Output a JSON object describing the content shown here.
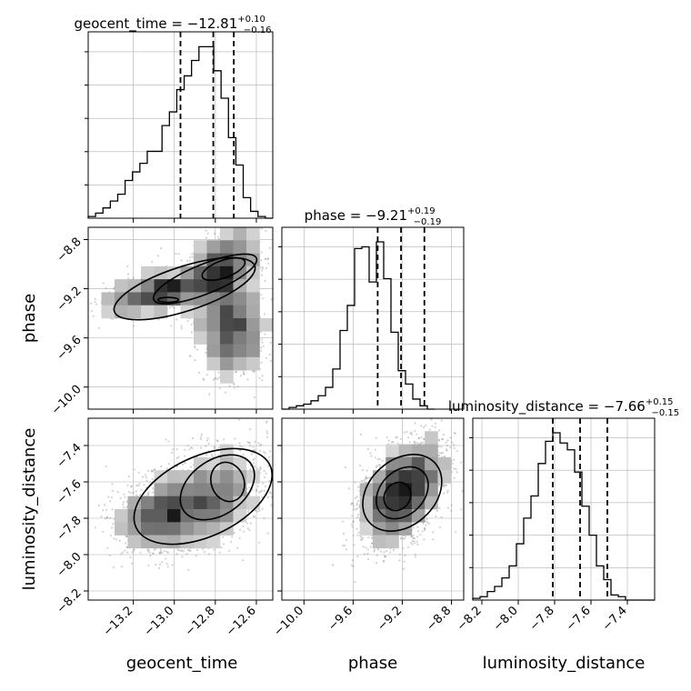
{
  "chart_data": {
    "type": "corner",
    "parameters": [
      "geocent_time",
      "phase",
      "luminosity_distance"
    ],
    "grid": true,
    "ranges": {
      "geocent_time": [
        -13.42,
        -12.52
      ],
      "phase": [
        -10.18,
        -8.7
      ],
      "luminosity_distance": [
        -8.25,
        -7.25
      ]
    },
    "ticks": {
      "geocent_time": [
        "-13.2",
        "-13.0",
        "-12.8",
        "-12.6"
      ],
      "phase": [
        "-10.0",
        "-9.6",
        "-9.2",
        "-8.8"
      ],
      "luminosity_distance": [
        "-8.2",
        "-8.0",
        "-7.8",
        "-7.6",
        "-7.4"
      ]
    },
    "tick_values": {
      "geocent_time": [
        -13.2,
        -13.0,
        -12.8,
        -12.6
      ],
      "phase": [
        -10.0,
        -9.6,
        -9.2,
        -8.8
      ],
      "luminosity_distance": [
        -8.2,
        -8.0,
        -7.8,
        -7.6,
        -7.4
      ]
    },
    "titles": [
      {
        "param": "geocent_time",
        "label": "geocent_time = −12.81",
        "plus": "+0.10",
        "minus": "−0.16"
      },
      {
        "param": "phase",
        "label": "phase = −9.21",
        "plus": "+0.19",
        "minus": "−0.19"
      },
      {
        "param": "luminosity_distance",
        "label": "luminosity_distance = −7.66",
        "plus": "+0.15",
        "minus": "−0.15"
      }
    ],
    "quantiles": {
      "geocent_time": [
        -12.97,
        -12.81,
        -12.71
      ],
      "phase": [
        -9.4,
        -9.21,
        -9.02
      ],
      "luminosity_distance": [
        -7.81,
        -7.66,
        -7.51
      ]
    },
    "histograms": {
      "geocent_time": {
        "edges_start": -13.42,
        "bin_width": 0.036,
        "counts": [
          1,
          3,
          6,
          10,
          14,
          22,
          27,
          32,
          39,
          39,
          54,
          62,
          75,
          83,
          92,
          100,
          100,
          86,
          70,
          47,
          31,
          12,
          4,
          1,
          0
        ]
      },
      "phase": {
        "edges_start": -10.18,
        "bin_width": 0.0592,
        "counts": [
          0,
          1,
          2,
          3,
          5,
          8,
          13,
          24,
          47,
          62,
          96,
          97,
          76,
          100,
          78,
          46,
          23,
          15,
          6,
          2,
          0
        ]
      },
      "luminosity_distance": {
        "edges_start": -8.25,
        "bin_width": 0.04,
        "counts": [
          1,
          2,
          5,
          8,
          13,
          20,
          33,
          48,
          61,
          80,
          93,
          98,
          92,
          88,
          75,
          55,
          38,
          20,
          12,
          3,
          2,
          0,
          0,
          0,
          0
        ]
      }
    },
    "axis_labels": {
      "geocent_time": "geocent_time",
      "phase": "phase",
      "luminosity_distance": "luminosity_distance"
    },
    "colors": {
      "line": "#000000",
      "grid": "#b0b0b0",
      "scatter": "#7f7f7f"
    }
  }
}
